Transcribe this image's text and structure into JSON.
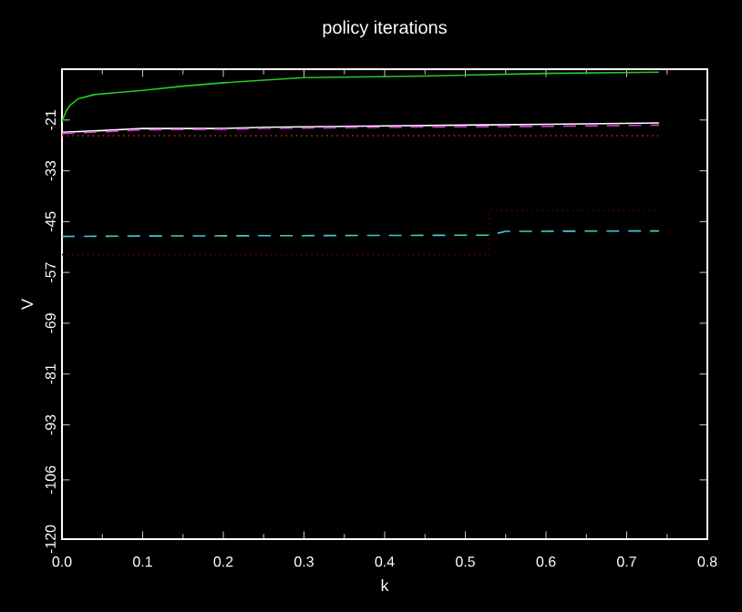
{
  "chart_data": {
    "type": "line",
    "title": "policy  iterations",
    "xlabel": "k",
    "ylabel": "V",
    "xlim": [
      0,
      0.8
    ],
    "ylim": [
      -120,
      -9
    ],
    "xticks": [
      {
        "value": 0,
        "label": "0.0"
      },
      0.1,
      0.2,
      0.3,
      0.4,
      0.5,
      0.6,
      0.7,
      0.8
    ],
    "yticks": [
      -120,
      -106,
      -93,
      -81,
      -69,
      -57,
      -45,
      -33,
      -21
    ],
    "grid": false,
    "series": [
      {
        "color": "#22cc22",
        "line_style": "solid",
        "x": [
          0,
          0.005,
          0.01,
          0.02,
          0.04,
          0.07,
          0.1,
          0.15,
          0.2,
          0.3,
          0.45,
          0.6,
          0.74
        ],
        "values": [
          -21.3,
          -19,
          -17.5,
          -16,
          -15,
          -14.5,
          -14,
          -13,
          -12.2,
          -11,
          -10.6,
          -10,
          -9.7
        ]
      },
      {
        "color": "#ffffff",
        "line_style": "solid",
        "x": [
          0,
          0.05,
          0.1,
          0.2,
          0.25,
          0.4,
          0.6,
          0.74
        ],
        "values": [
          -23.9,
          -23.5,
          -23,
          -23,
          -22.7,
          -22.4,
          -22,
          -21.7
        ]
      },
      {
        "color": "#cc44cc",
        "line_style": "dashed",
        "x": [
          0,
          0.05,
          0.1,
          0.2,
          0.25,
          0.4,
          0.6,
          0.74
        ],
        "values": [
          -24.2,
          -23.8,
          -23.3,
          -23.2,
          -23,
          -22.7,
          -22.5,
          -22.2
        ]
      },
      {
        "color": "#cc2222",
        "line_style": "dotted",
        "x": [
          0,
          0.74
        ],
        "values": [
          -24.7,
          -24.7
        ]
      },
      {
        "color": "#44cccc",
        "line_style": "dashed",
        "x": [
          0,
          0.1,
          0.3,
          0.53,
          0.55,
          0.74
        ],
        "values": [
          -48.5,
          -48.4,
          -48.3,
          -48.2,
          -47.3,
          -47.2
        ]
      },
      {
        "color": "#550000",
        "line_style": "dotted",
        "x": [
          0,
          0.53,
          0.53,
          0.74
        ],
        "values": [
          -52.8,
          -52.8,
          -42.4,
          -42.4
        ]
      }
    ]
  }
}
